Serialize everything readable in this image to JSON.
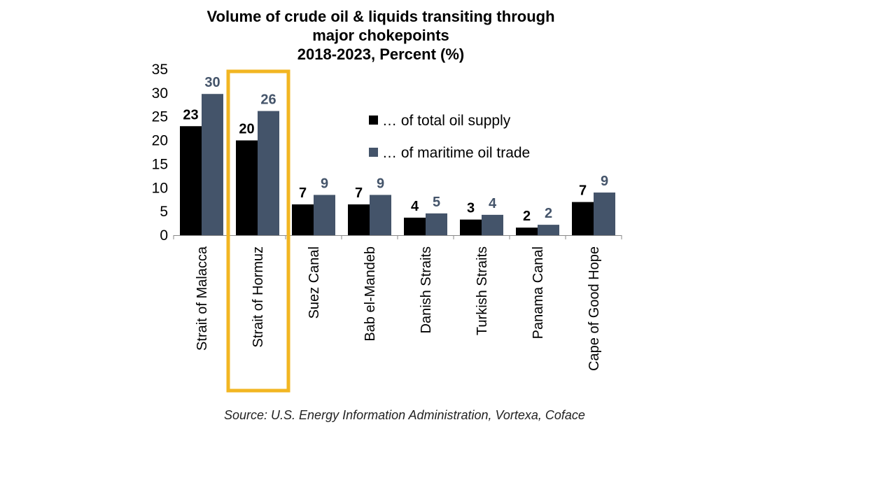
{
  "chart_data": {
    "type": "bar",
    "title_lines": [
      "Volume of crude oil & liquids transiting through",
      "major chokepoints",
      "2018-2023, Percent (%)"
    ],
    "categories": [
      "Strait of Malacca",
      "Strait of Hormuz",
      "Suez Canal",
      "Bab el-Mandeb",
      "Danish Straits",
      "Turkish Straits",
      "Panama Canal",
      "Cape of Good Hope"
    ],
    "series": [
      {
        "name": "… of total oil supply",
        "color": "#000000",
        "values": [
          23,
          20,
          6.5,
          6.5,
          3.7,
          3.3,
          1.6,
          7
        ],
        "labels": [
          "23",
          "20",
          "7",
          "7",
          "4",
          "3",
          "2",
          "7"
        ]
      },
      {
        "name": "… of maritime oil trade",
        "color": "#44546a",
        "values": [
          29.8,
          26.2,
          8.5,
          8.5,
          4.6,
          4.3,
          2.2,
          9
        ],
        "labels": [
          "30",
          "26",
          "9",
          "9",
          "5",
          "4",
          "2",
          "9"
        ]
      }
    ],
    "ylim": [
      0,
      35
    ],
    "yticks": [
      0,
      5,
      10,
      15,
      20,
      25,
      30,
      35
    ],
    "highlight_category": "Strait of Hormuz",
    "highlight_color": "#f2b622",
    "legend_position": "right",
    "grid": false,
    "source": "Source: U.S. Energy Information Administration, Vortexa, Coface"
  }
}
